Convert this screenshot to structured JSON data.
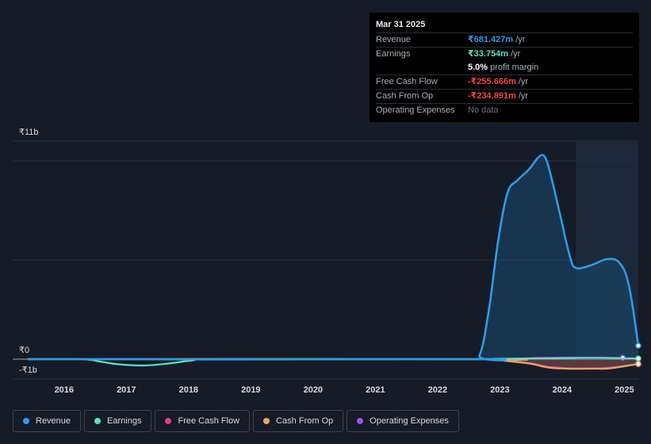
{
  "tooltip": {
    "date": "Mar 31 2025",
    "rows": {
      "revenue": {
        "label": "Revenue",
        "value": "₹681.427m",
        "unit": "/yr"
      },
      "earnings": {
        "label": "Earnings",
        "value": "₹33.754m",
        "unit": "/yr"
      },
      "margin": {
        "value": "5.0%",
        "unit": "profit margin"
      },
      "fcf": {
        "label": "Free Cash Flow",
        "value": "-₹255.666m",
        "unit": "/yr"
      },
      "cfo": {
        "label": "Cash From Op",
        "value": "-₹234.891m",
        "unit": "/yr"
      },
      "opex": {
        "label": "Operating Expenses",
        "value": "No data"
      }
    }
  },
  "legend": [
    {
      "label": "Revenue",
      "color": "#2e9be8"
    },
    {
      "label": "Earnings",
      "color": "#5de0c4"
    },
    {
      "label": "Free Cash Flow",
      "color": "#d0457d"
    },
    {
      "label": "Cash From Op",
      "color": "#e8a465"
    },
    {
      "label": "Operating Expenses",
      "color": "#9c4ee0"
    }
  ],
  "chart_data": {
    "type": "area",
    "title": "",
    "xlabel": "",
    "ylabel": "",
    "ylim": [
      -1,
      11
    ],
    "y_tick_labels": [
      "₹11b",
      "₹0",
      "-₹1b"
    ],
    "x_ticks": [
      2016,
      2017,
      2018,
      2019,
      2020,
      2021,
      2022,
      2023,
      2024,
      2025
    ],
    "x_tick_labels": [
      "2016",
      "2017",
      "2018",
      "2019",
      "2020",
      "2021",
      "2022",
      "2023",
      "2024",
      "2025"
    ],
    "xlim": [
      2015.2,
      2025.25
    ],
    "forecast_shade_start": 2024.25,
    "series": [
      {
        "name": "Revenue",
        "color": "#2e9be8",
        "x": [
          2015.45,
          2022.5,
          2022.7,
          2022.85,
          2023.0,
          2023.15,
          2023.3,
          2023.5,
          2023.65,
          2023.75,
          2023.85,
          2024.0,
          2024.15,
          2024.25,
          2024.5,
          2024.75,
          2024.95,
          2025.1,
          2025.25
        ],
        "y": [
          0.0,
          0.0,
          0.2,
          2.5,
          6.0,
          8.4,
          9.0,
          9.6,
          10.2,
          10.2,
          9.2,
          7.2,
          5.2,
          4.6,
          4.75,
          5.05,
          4.85,
          3.7,
          0.68
        ]
      },
      {
        "name": "Earnings",
        "color": "#5de0c4",
        "x": [
          2015.45,
          2016.3,
          2016.6,
          2016.9,
          2017.3,
          2017.7,
          2018.1,
          2018.5,
          2022.5,
          2023.0,
          2024.0,
          2024.5,
          2025.25
        ],
        "y": [
          0.0,
          0.0,
          -0.12,
          -0.26,
          -0.32,
          -0.22,
          -0.06,
          0.0,
          0.0,
          0.02,
          0.05,
          0.06,
          0.034
        ]
      },
      {
        "name": "Free Cash Flow",
        "color": "#d0457d",
        "x": [
          2015.45,
          2022.8,
          2023.1,
          2023.5,
          2023.8,
          2024.1,
          2024.5,
          2024.8,
          2025.25
        ],
        "y": [
          0.0,
          0.0,
          -0.08,
          -0.2,
          -0.38,
          -0.45,
          -0.46,
          -0.42,
          -0.256
        ]
      },
      {
        "name": "Cash From Op",
        "color": "#e8a465",
        "x": [
          2015.45,
          2022.8,
          2023.1,
          2023.5,
          2023.8,
          2024.1,
          2024.5,
          2024.8,
          2025.25
        ],
        "y": [
          0.0,
          0.0,
          -0.08,
          -0.22,
          -0.42,
          -0.48,
          -0.48,
          -0.46,
          -0.235
        ]
      },
      {
        "name": "Operating Expenses",
        "color": "#9c4ee0",
        "x": [
          2023.2,
          2023.6,
          2024.0,
          2024.5,
          2025.0
        ],
        "y": [
          0.0,
          0.06,
          0.08,
          0.08,
          0.07
        ]
      }
    ]
  }
}
